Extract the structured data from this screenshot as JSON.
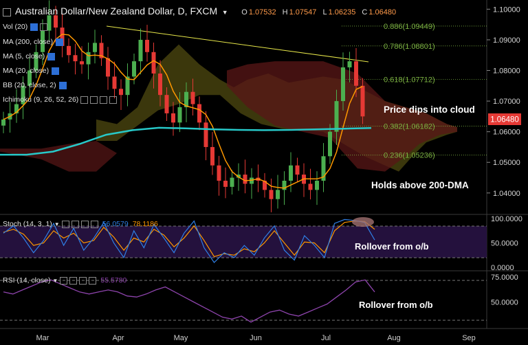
{
  "header": {
    "title": "Australian Dollar/New Zealand Dollar, D, FXCM",
    "ohlc": [
      {
        "label": "O",
        "value": "1.07532"
      },
      {
        "label": "H",
        "value": "1.07547"
      },
      {
        "label": "L",
        "value": "1.06235"
      },
      {
        "label": "C",
        "value": "1.06480"
      }
    ]
  },
  "indicators": [
    {
      "label": "Vol (20)"
    },
    {
      "label": "MA (200, close)"
    },
    {
      "label": "MA (5, close)"
    },
    {
      "label": "MA (20, close)"
    },
    {
      "label": "BB (20, close, 2)"
    },
    {
      "label": "Ichimoku (9, 26, 52, 26)"
    }
  ],
  "colors": {
    "bull": "#4caf50",
    "bear": "#e53935",
    "ma200": "#27c9c9",
    "ma5": "#ff9800",
    "trendline": "#e8e84a",
    "fib": "#7cb342",
    "stoch_k": "#2f7fe6",
    "stoch_d": "#ff9800",
    "rsi": "#8e44ad",
    "price_tag": "#e53935"
  },
  "chart_data": [
    {
      "type": "candlestick",
      "title": "Australian Dollar/New Zealand Dollar, D, FXCM",
      "x_tick_labels": [
        "Mar",
        "Apr",
        "May",
        "Jun",
        "Jul",
        "Aug",
        "Sep"
      ],
      "y_ticks": [
        "1.10000",
        "1.09000",
        "1.08000",
        "1.07000",
        "1.06000",
        "1.05000",
        "1.04000"
      ],
      "ylim": [
        1.033,
        1.103
      ],
      "last_price": "1.06480",
      "series": [
        {
          "name": "AUD/NZD daily (approx. closes)",
          "values": [
            1.064,
            1.066,
            1.069,
            1.075,
            1.08,
            1.086,
            1.093,
            1.098,
            1.094,
            1.088,
            1.085,
            1.083,
            1.082,
            1.086,
            1.089,
            1.084,
            1.078,
            1.074,
            1.072,
            1.078,
            1.083,
            1.09,
            1.086,
            1.079,
            1.072,
            1.066,
            1.063,
            1.068,
            1.073,
            1.069,
            1.063,
            1.055,
            1.049,
            1.044,
            1.042,
            1.045,
            1.046,
            1.043,
            1.045,
            1.044,
            1.041,
            1.038,
            1.041,
            1.044,
            1.049,
            1.046,
            1.043,
            1.041,
            1.044,
            1.052,
            1.06,
            1.07,
            1.081,
            1.083,
            1.075,
            1.065
          ]
        },
        {
          "name": "MA (200, close)",
          "values": [
            1.0525,
            1.0525,
            1.0535,
            1.056,
            1.059,
            1.0605,
            1.0613,
            1.0611,
            1.0608,
            1.0606,
            1.0605,
            1.0606,
            1.0608,
            1.061,
            1.0612
          ]
        }
      ],
      "fibonacci": [
        {
          "label": "0.886(1.09449)",
          "value": 1.09449
        },
        {
          "label": "0.786(1.08801)",
          "value": 1.08801
        },
        {
          "label": "0.618(1.07712)",
          "value": 1.07712
        },
        {
          "label": "0.382(1.06182)",
          "value": 1.06182
        },
        {
          "label": "0.236(1.05236)",
          "value": 1.05236
        }
      ],
      "annotations": [
        "Price dips into cloud",
        "Holds above 200-DMA"
      ]
    },
    {
      "type": "line",
      "title": "Stoch (14, 3, 1)",
      "values_shown": [
        "56.0579",
        "78.1186"
      ],
      "y_ticks": [
        "100.0000",
        "50.0000",
        "0.0000"
      ],
      "ylim": [
        0,
        100
      ],
      "bands": [
        80,
        20
      ],
      "series": [
        {
          "name": "%K",
          "values": [
            70,
            85,
            60,
            30,
            55,
            90,
            45,
            80,
            35,
            60,
            92,
            50,
            20,
            75,
            40,
            88,
            60,
            30,
            70,
            95,
            40,
            10,
            30,
            20,
            45,
            25,
            60,
            85,
            35,
            15,
            65,
            45,
            20,
            90,
            98,
            96,
            92,
            56
          ]
        },
        {
          "name": "%D",
          "values": [
            72,
            78,
            68,
            45,
            50,
            75,
            60,
            70,
            50,
            55,
            82,
            62,
            35,
            60,
            52,
            78,
            66,
            42,
            60,
            85,
            55,
            22,
            28,
            25,
            38,
            32,
            50,
            75,
            50,
            25,
            52,
            50,
            30,
            75,
            92,
            95,
            94,
            78
          ]
        }
      ],
      "annotation": "Rollover from o/b"
    },
    {
      "type": "line",
      "title": "RSI (14, close)",
      "values_shown": [
        "55.5780"
      ],
      "y_ticks": [
        "75.0000",
        "50.0000"
      ],
      "ylim": [
        25,
        77
      ],
      "bands": [
        70,
        30
      ],
      "series": [
        {
          "name": "RSI",
          "values": [
            60,
            58,
            62,
            66,
            70,
            72,
            68,
            64,
            60,
            58,
            60,
            62,
            60,
            56,
            55,
            58,
            62,
            65,
            60,
            55,
            50,
            45,
            40,
            35,
            33,
            36,
            30,
            35,
            40,
            42,
            38,
            36,
            40,
            44,
            48,
            55,
            62,
            70,
            72,
            60
          ]
        }
      ],
      "annotation": "Rollover from o/b"
    }
  ]
}
